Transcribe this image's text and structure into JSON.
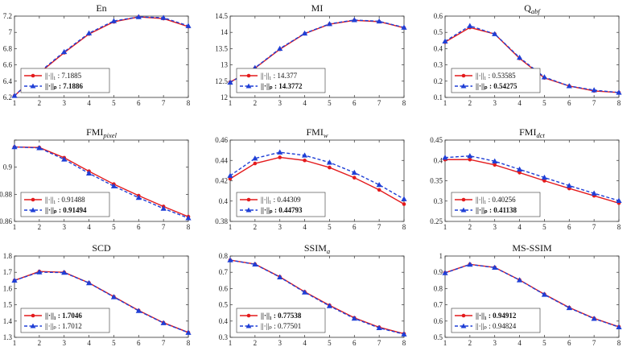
{
  "figure": {
    "description_free": true
  },
  "chart_data": [
    {
      "type": "line",
      "title": "En",
      "title_sub": "",
      "x": [
        1,
        2,
        3,
        4,
        5,
        6,
        7,
        8
      ],
      "ylim": [
        6.2,
        7.2
      ],
      "yticks": [
        "6.2",
        "6.4",
        "6.6",
        "6.8",
        "7",
        "7.2"
      ],
      "ytick_values": [
        6.2,
        6.4,
        6.6,
        6.8,
        7,
        7.2
      ],
      "legend_pos": "bottom-left",
      "series": [
        {
          "name": "||·||₁",
          "legend_label": "||·||₁",
          "legend_value": ": 7.1885",
          "bold": false,
          "color": "#e41a1c",
          "dashed": false,
          "marker": "circle",
          "values": [
            6.22,
            6.5,
            6.75,
            6.98,
            7.13,
            7.19,
            7.17,
            7.07
          ]
        },
        {
          "name": "||·||ₚ",
          "legend_label": "||·||ₚ",
          "legend_value": ": 7.1886",
          "bold": true,
          "color": "#1f3fd6",
          "dashed": true,
          "marker": "triangle",
          "values": [
            6.22,
            6.51,
            6.76,
            6.99,
            7.14,
            7.19,
            7.18,
            7.08
          ]
        }
      ]
    },
    {
      "type": "line",
      "title": "MI",
      "title_sub": "",
      "x": [
        1,
        2,
        3,
        4,
        5,
        6,
        7,
        8
      ],
      "ylim": [
        12,
        14.5
      ],
      "yticks": [
        "12",
        "12.5",
        "13",
        "13.5",
        "14",
        "14.5"
      ],
      "ytick_values": [
        12,
        12.5,
        13,
        13.5,
        14,
        14.5
      ],
      "legend_pos": "bottom-left",
      "series": [
        {
          "name": "||·||₁",
          "legend_label": "||·||₁",
          "legend_value": ": 14.377",
          "bold": false,
          "color": "#e41a1c",
          "dashed": false,
          "marker": "circle",
          "values": [
            12.47,
            12.9,
            13.48,
            13.96,
            14.25,
            14.37,
            14.33,
            14.14
          ]
        },
        {
          "name": "||·||ₚ",
          "legend_label": "||·||ₚ",
          "legend_value": ": 14.3772",
          "bold": true,
          "color": "#1f3fd6",
          "dashed": true,
          "marker": "triangle",
          "values": [
            12.46,
            12.91,
            13.5,
            13.97,
            14.26,
            14.38,
            14.34,
            14.15
          ]
        }
      ]
    },
    {
      "type": "line",
      "title": "Q",
      "title_sub": "abf",
      "x": [
        1,
        2,
        3,
        4,
        5,
        6,
        7,
        8
      ],
      "ylim": [
        0.1,
        0.6
      ],
      "yticks": [
        "0.1",
        "0.2",
        "0.3",
        "0.4",
        "0.5",
        "0.6"
      ],
      "ytick_values": [
        0.1,
        0.2,
        0.3,
        0.4,
        0.5,
        0.6
      ],
      "legend_pos": "bottom-left",
      "series": [
        {
          "name": "||·||₁",
          "legend_label": "||·||₁",
          "legend_value": ": 0.53585",
          "bold": false,
          "color": "#e41a1c",
          "dashed": false,
          "marker": "circle",
          "values": [
            0.44,
            0.53,
            0.49,
            0.34,
            0.22,
            0.17,
            0.14,
            0.13
          ]
        },
        {
          "name": "||·||ₚ",
          "legend_label": "||·||ₚ",
          "legend_value": ": 0.54275",
          "bold": true,
          "color": "#1f3fd6",
          "dashed": true,
          "marker": "triangle",
          "values": [
            0.445,
            0.54,
            0.49,
            0.345,
            0.225,
            0.17,
            0.145,
            0.13
          ]
        }
      ]
    },
    {
      "type": "line",
      "title": "FMI",
      "title_sub": "pixel",
      "x": [
        1,
        2,
        3,
        4,
        5,
        6,
        7,
        8
      ],
      "ylim": [
        0.86,
        0.92
      ],
      "yticks": [
        "0.86",
        "0.88",
        "0.9",
        ""
      ],
      "ytick_values": [
        0.86,
        0.88,
        0.9,
        0.92
      ],
      "legend_pos": "bottom-left",
      "series": [
        {
          "name": "||·||₁",
          "legend_label": "||·||₁",
          "legend_value": ": 0.91488",
          "bold": false,
          "color": "#e41a1c",
          "dashed": false,
          "marker": "circle",
          "values": [
            0.9149,
            0.9145,
            0.907,
            0.897,
            0.8875,
            0.879,
            0.871,
            0.8635
          ]
        },
        {
          "name": "||·||ₚ",
          "legend_label": "||·||ₚ",
          "legend_value": ": 0.91494",
          "bold": true,
          "color": "#1f3fd6",
          "dashed": true,
          "marker": "triangle",
          "values": [
            0.9149,
            0.9142,
            0.9058,
            0.8955,
            0.886,
            0.8775,
            0.8695,
            0.8625
          ]
        }
      ]
    },
    {
      "type": "line",
      "title": "FMI",
      "title_sub": "w",
      "x": [
        1,
        2,
        3,
        4,
        5,
        6,
        7,
        8
      ],
      "ylim": [
        0.38,
        0.46
      ],
      "yticks": [
        "0.38",
        "0.4",
        "0.42",
        "0.44",
        "0.46"
      ],
      "ytick_values": [
        0.38,
        0.4,
        0.42,
        0.44,
        0.46
      ],
      "legend_pos": "bottom-left",
      "series": [
        {
          "name": "||·||₁",
          "legend_label": "||·||₁",
          "legend_value": ": 0.44309",
          "bold": false,
          "color": "#e41a1c",
          "dashed": false,
          "marker": "circle",
          "values": [
            0.422,
            0.437,
            0.443,
            0.44,
            0.433,
            0.423,
            0.411,
            0.397
          ]
        },
        {
          "name": "||·||ₚ",
          "legend_label": "||·||ₚ",
          "legend_value": ": 0.44793",
          "bold": true,
          "color": "#1f3fd6",
          "dashed": true,
          "marker": "triangle",
          "values": [
            0.425,
            0.442,
            0.448,
            0.445,
            0.438,
            0.428,
            0.416,
            0.402
          ]
        }
      ]
    },
    {
      "type": "line",
      "title": "FMI",
      "title_sub": "dct",
      "x": [
        1,
        2,
        3,
        4,
        5,
        6,
        7,
        8
      ],
      "ylim": [
        0.25,
        0.45
      ],
      "yticks": [
        "0.25",
        "0.3",
        "0.35",
        "0.4",
        "0.45"
      ],
      "ytick_values": [
        0.25,
        0.3,
        0.35,
        0.4,
        0.45
      ],
      "legend_pos": "bottom-left",
      "series": [
        {
          "name": "||·||₁",
          "legend_label": "||·||₁",
          "legend_value": ": 0.40256",
          "bold": false,
          "color": "#e41a1c",
          "dashed": false,
          "marker": "circle",
          "values": [
            0.402,
            0.402,
            0.389,
            0.37,
            0.35,
            0.331,
            0.313,
            0.295
          ]
        },
        {
          "name": "||·||ₚ",
          "legend_label": "||·||ₚ",
          "legend_value": ": 0.41138",
          "bold": true,
          "color": "#1f3fd6",
          "dashed": true,
          "marker": "triangle",
          "values": [
            0.407,
            0.411,
            0.398,
            0.378,
            0.358,
            0.338,
            0.319,
            0.301
          ]
        }
      ]
    },
    {
      "type": "line",
      "title": "SCD",
      "title_sub": "",
      "x": [
        1,
        2,
        3,
        4,
        5,
        6,
        7,
        8
      ],
      "ylim": [
        1.3,
        1.8
      ],
      "yticks": [
        "1.3",
        "1.4",
        "1.5",
        "1.6",
        "1.7",
        "1.8"
      ],
      "ytick_values": [
        1.3,
        1.4,
        1.5,
        1.6,
        1.7,
        1.8
      ],
      "legend_pos": "bottom-left",
      "series": [
        {
          "name": "||·||₁",
          "legend_label": "||·||₁",
          "legend_value": ": 1.7046",
          "bold": true,
          "color": "#e41a1c",
          "dashed": false,
          "marker": "circle",
          "values": [
            1.65,
            1.705,
            1.7,
            1.635,
            1.55,
            1.465,
            1.39,
            1.33
          ]
        },
        {
          "name": "||·||ₚ",
          "legend_label": "||·||ₚ",
          "legend_value": ": 1.7012",
          "bold": false,
          "color": "#1f3fd6",
          "dashed": true,
          "marker": "triangle",
          "values": [
            1.65,
            1.701,
            1.698,
            1.634,
            1.548,
            1.463,
            1.388,
            1.329
          ]
        }
      ]
    },
    {
      "type": "line",
      "title": "SSIM",
      "title_sub": "a",
      "x": [
        1,
        2,
        3,
        4,
        5,
        6,
        7,
        8
      ],
      "ylim": [
        0.3,
        0.8
      ],
      "yticks": [
        "0.3",
        "0.4",
        "0.5",
        "0.6",
        "0.7",
        "0.8"
      ],
      "ytick_values": [
        0.3,
        0.4,
        0.5,
        0.6,
        0.7,
        0.8
      ],
      "legend_pos": "bottom-left",
      "series": [
        {
          "name": "||·||₁",
          "legend_label": "||·||₁",
          "legend_value": ": 0.77538",
          "bold": true,
          "color": "#e41a1c",
          "dashed": false,
          "marker": "circle",
          "values": [
            0.775,
            0.75,
            0.672,
            0.58,
            0.497,
            0.42,
            0.362,
            0.322
          ]
        },
        {
          "name": "||·||ₚ",
          "legend_label": "||·||ₚ",
          "legend_value": ": 0.77501",
          "bold": false,
          "color": "#1f3fd6",
          "dashed": true,
          "marker": "triangle",
          "values": [
            0.775,
            0.749,
            0.67,
            0.577,
            0.493,
            0.416,
            0.358,
            0.319
          ]
        }
      ]
    },
    {
      "type": "line",
      "title": "MS-SSIM",
      "title_sub": "",
      "x": [
        1,
        2,
        3,
        4,
        5,
        6,
        7,
        8
      ],
      "ylim": [
        0.5,
        1.0
      ],
      "yticks": [
        "0.5",
        "0.6",
        "0.7",
        "0.8",
        "0.9",
        "1"
      ],
      "ytick_values": [
        0.5,
        0.6,
        0.7,
        0.8,
        0.9,
        1.0
      ],
      "legend_pos": "bottom-left",
      "series": [
        {
          "name": "||·||₁",
          "legend_label": "||·||₁",
          "legend_value": ": 0.94912",
          "bold": true,
          "color": "#e41a1c",
          "dashed": false,
          "marker": "circle",
          "values": [
            0.897,
            0.949,
            0.93,
            0.853,
            0.765,
            0.683,
            0.617,
            0.565
          ]
        },
        {
          "name": "||·||ₚ",
          "legend_label": "||·||ₚ",
          "legend_value": ": 0.94824",
          "bold": false,
          "color": "#1f3fd6",
          "dashed": true,
          "marker": "triangle",
          "values": [
            0.896,
            0.948,
            0.929,
            0.852,
            0.763,
            0.681,
            0.615,
            0.563
          ]
        }
      ]
    }
  ]
}
